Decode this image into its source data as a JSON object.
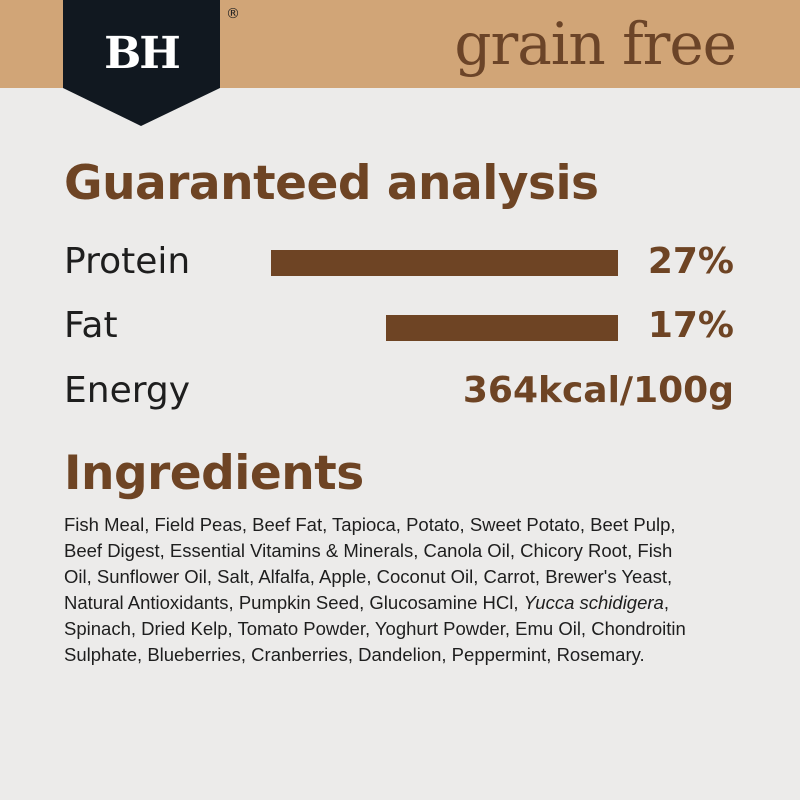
{
  "header": {
    "brand": "BH",
    "registered": "®",
    "tagline": "grain free",
    "colors": {
      "band": "#d1a577",
      "logo": "#111820",
      "accent": "#6e4424"
    }
  },
  "analysis": {
    "title": "Guaranteed analysis",
    "rows": [
      {
        "label": "Protein",
        "value": "27%",
        "percent": 27
      },
      {
        "label": "Fat",
        "value": "17%",
        "percent": 17
      },
      {
        "label": "Energy",
        "value": "364kcal/100g"
      }
    ]
  },
  "ingredients": {
    "title": "Ingredients",
    "text_before": "Fish Meal, Field Peas, Beef Fat, Tapioca, Potato, Sweet Potato, Beet Pulp, Beef Digest, Essential Vitamins & Minerals, Canola Oil, Chicory Root, Fish Oil, Sunflower Oil, Salt, Alfalfa, Apple, Coconut Oil, Carrot, Brewer's Yeast, Natural Antioxidants, Pumpkin Seed, Glucosamine HCl, ",
    "text_italic": "Yucca schidigera",
    "text_after": ", Spinach, Dried Kelp, Tomato Powder, Yoghurt Powder, Emu Oil, Chondroitin Sulphate, Blueberries, Cranberries, Dandelion, Peppermint, Rosemary."
  }
}
